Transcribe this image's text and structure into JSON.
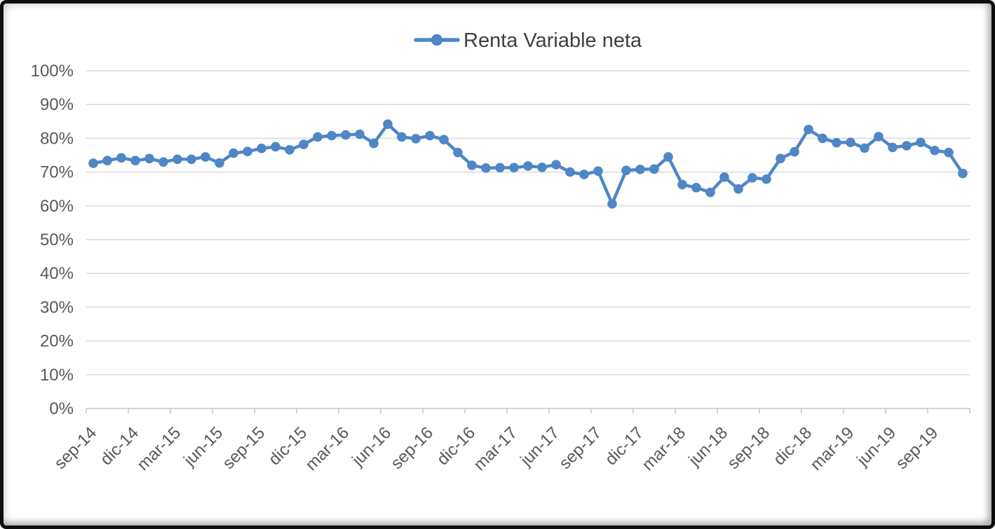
{
  "legend": {
    "label": "Renta Variable neta"
  },
  "chart_data": {
    "type": "line",
    "title": "",
    "series_name": "Renta Variable neta",
    "legend_position": "top-center",
    "grid": true,
    "ylim": [
      0,
      100
    ],
    "y_ticks": [
      "0%",
      "10%",
      "20%",
      "30%",
      "40%",
      "50%",
      "60%",
      "70%",
      "80%",
      "90%",
      "100%"
    ],
    "x_label_every": 3,
    "categories": [
      "sep-14",
      "oct-14",
      "nov-14",
      "dic-14",
      "ene-15",
      "feb-15",
      "mar-15",
      "abr-15",
      "may-15",
      "jun-15",
      "jul-15",
      "ago-15",
      "sep-15",
      "oct-15",
      "nov-15",
      "dic-15",
      "ene-16",
      "feb-16",
      "mar-16",
      "abr-16",
      "may-16",
      "jun-16",
      "jul-16",
      "ago-16",
      "sep-16",
      "oct-16",
      "nov-16",
      "dic-16",
      "ene-17",
      "feb-17",
      "mar-17",
      "abr-17",
      "may-17",
      "jun-17",
      "jul-17",
      "ago-17",
      "sep-17",
      "oct-17",
      "nov-17",
      "dic-17",
      "ene-18",
      "feb-18",
      "mar-18",
      "abr-18",
      "may-18",
      "jun-18",
      "jul-18",
      "ago-18",
      "sep-18",
      "oct-18",
      "nov-18",
      "dic-18",
      "ene-19",
      "feb-19",
      "mar-19",
      "abr-19",
      "may-19",
      "jun-19",
      "jul-19",
      "ago-19",
      "sep-19",
      "oct-19",
      "nov-19"
    ],
    "values": [
      72.6,
      73.4,
      74.2,
      73.4,
      74.0,
      73.0,
      73.8,
      73.8,
      74.5,
      72.7,
      75.6,
      76.1,
      77.0,
      77.5,
      76.6,
      78.2,
      80.4,
      80.8,
      81.0,
      81.2,
      78.5,
      84.2,
      80.4,
      79.9,
      80.8,
      79.6,
      75.8,
      72.0,
      71.2,
      71.3,
      71.3,
      71.8,
      71.4,
      72.2,
      70.0,
      69.3,
      70.3,
      60.6,
      70.5,
      70.8,
      70.9,
      74.5,
      66.3,
      65.4,
      64.0,
      68.5,
      65.0,
      68.3,
      67.9,
      74.0,
      76.0,
      82.6,
      80.0,
      78.7,
      78.8,
      77.1,
      80.5,
      77.3,
      77.8,
      78.8,
      76.4,
      75.8,
      69.6
    ],
    "colors": {
      "line": "#4F86C6",
      "gridline": "#D9D9D9",
      "axis_line": "#C6C6C6",
      "axis_label": "#595959",
      "legend_text": "#404040",
      "background": "#FFFFFF",
      "frame_border": "#0D0D0D"
    }
  }
}
